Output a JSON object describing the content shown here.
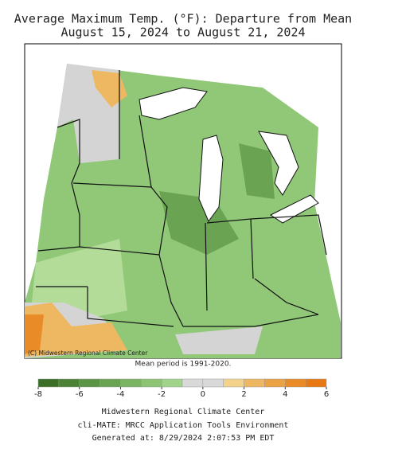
{
  "title": "Average Maximum Temp. (°F): Departure from Mean",
  "subtitle": "August 15, 2024 to August 21, 2024",
  "copyright": "(C) Midwestern Regional Climate Center",
  "mean_period": "Mean period is 1991-2020.",
  "colorbar": {
    "bins": [
      -8,
      -7,
      -6,
      -5,
      -4,
      -3,
      -2,
      -1,
      0,
      1,
      2,
      3,
      4,
      5,
      6
    ],
    "colors": [
      "#3b6f27",
      "#4c8236",
      "#5b9444",
      "#6aa453",
      "#7bb462",
      "#8cc473",
      "#a1d48a",
      "#d9d9d9",
      "#d9d9d9",
      "#f3d38c",
      "#eeb862",
      "#eba244",
      "#e98b27",
      "#e87812"
    ],
    "ticks": [
      -8,
      -6,
      -4,
      -2,
      0,
      2,
      4,
      6
    ]
  },
  "footer": [
    "Midwestern Regional Climate Center",
    "cli-MATE: MRCC Application Tools Environment",
    "Generated at: 8/29/2024 2:07:53 PM EDT"
  ]
}
